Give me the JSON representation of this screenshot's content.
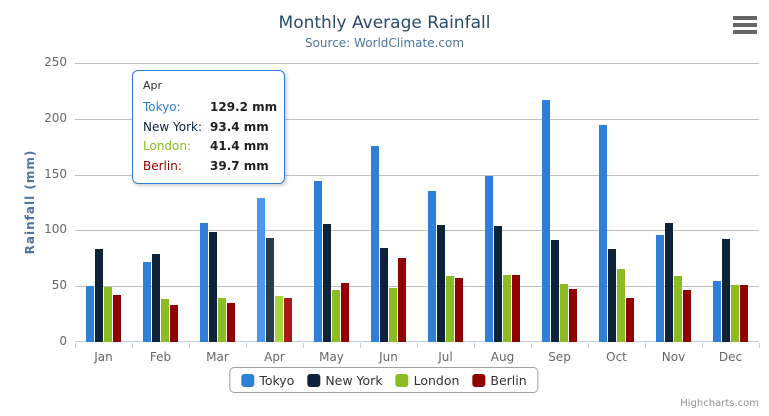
{
  "header": {
    "title": "Monthly Average Rainfall",
    "subtitle": "Source: WorldClimate.com"
  },
  "yaxis": {
    "title": "Rainfall (mm)",
    "ticks": [
      0,
      50,
      100,
      150,
      200,
      250
    ]
  },
  "chart_data": {
    "type": "bar",
    "title": "Monthly Average Rainfall",
    "subtitle": "Source: WorldClimate.com",
    "xlabel": "",
    "ylabel": "Rainfall (mm)",
    "ylim": [
      0,
      250
    ],
    "ytick_interval": 50,
    "grid": true,
    "legend_position": "bottom",
    "unit": "mm",
    "categories": [
      "Jan",
      "Feb",
      "Mar",
      "Apr",
      "May",
      "Jun",
      "Jul",
      "Aug",
      "Sep",
      "Oct",
      "Nov",
      "Dec"
    ],
    "series": [
      {
        "name": "Tokyo",
        "color": "#2f7ed8",
        "hover_color": "#4a97f2",
        "values": [
          49.9,
          71.5,
          106.4,
          129.2,
          144.0,
          176.0,
          135.6,
          148.5,
          216.4,
          194.1,
          95.6,
          54.4
        ]
      },
      {
        "name": "New York",
        "color": "#0d233a",
        "hover_color": "#263c53",
        "values": [
          83.6,
          78.8,
          98.5,
          93.4,
          106.0,
          84.5,
          105.0,
          104.3,
          91.2,
          83.5,
          106.6,
          92.3
        ]
      },
      {
        "name": "London",
        "color": "#8bbc21",
        "hover_color": "#a4d53a",
        "values": [
          48.9,
          38.8,
          39.3,
          41.4,
          47.0,
          48.3,
          59.0,
          59.6,
          52.4,
          65.2,
          59.3,
          51.2
        ]
      },
      {
        "name": "Berlin",
        "color": "#910000",
        "hover_color": "#aa1919",
        "values": [
          42.4,
          33.2,
          34.5,
          39.7,
          52.6,
          75.5,
          57.4,
          60.4,
          47.6,
          39.1,
          46.8,
          51.1
        ]
      }
    ],
    "hovered_category": "Apr"
  },
  "tooltip": {
    "header": "Apr",
    "border_color": "#2f7ed8",
    "rows": [
      {
        "name": "Tokyo:",
        "value": "129.2 mm",
        "color": "#2f7ed8"
      },
      {
        "name": "New York:",
        "value": "93.4 mm",
        "color": "#0d233a"
      },
      {
        "name": "London:",
        "value": "41.4 mm",
        "color": "#8bbc21"
      },
      {
        "name": "Berlin:",
        "value": "39.7 mm",
        "color": "#910000"
      }
    ]
  },
  "credits": {
    "label": "Highcharts.com"
  }
}
